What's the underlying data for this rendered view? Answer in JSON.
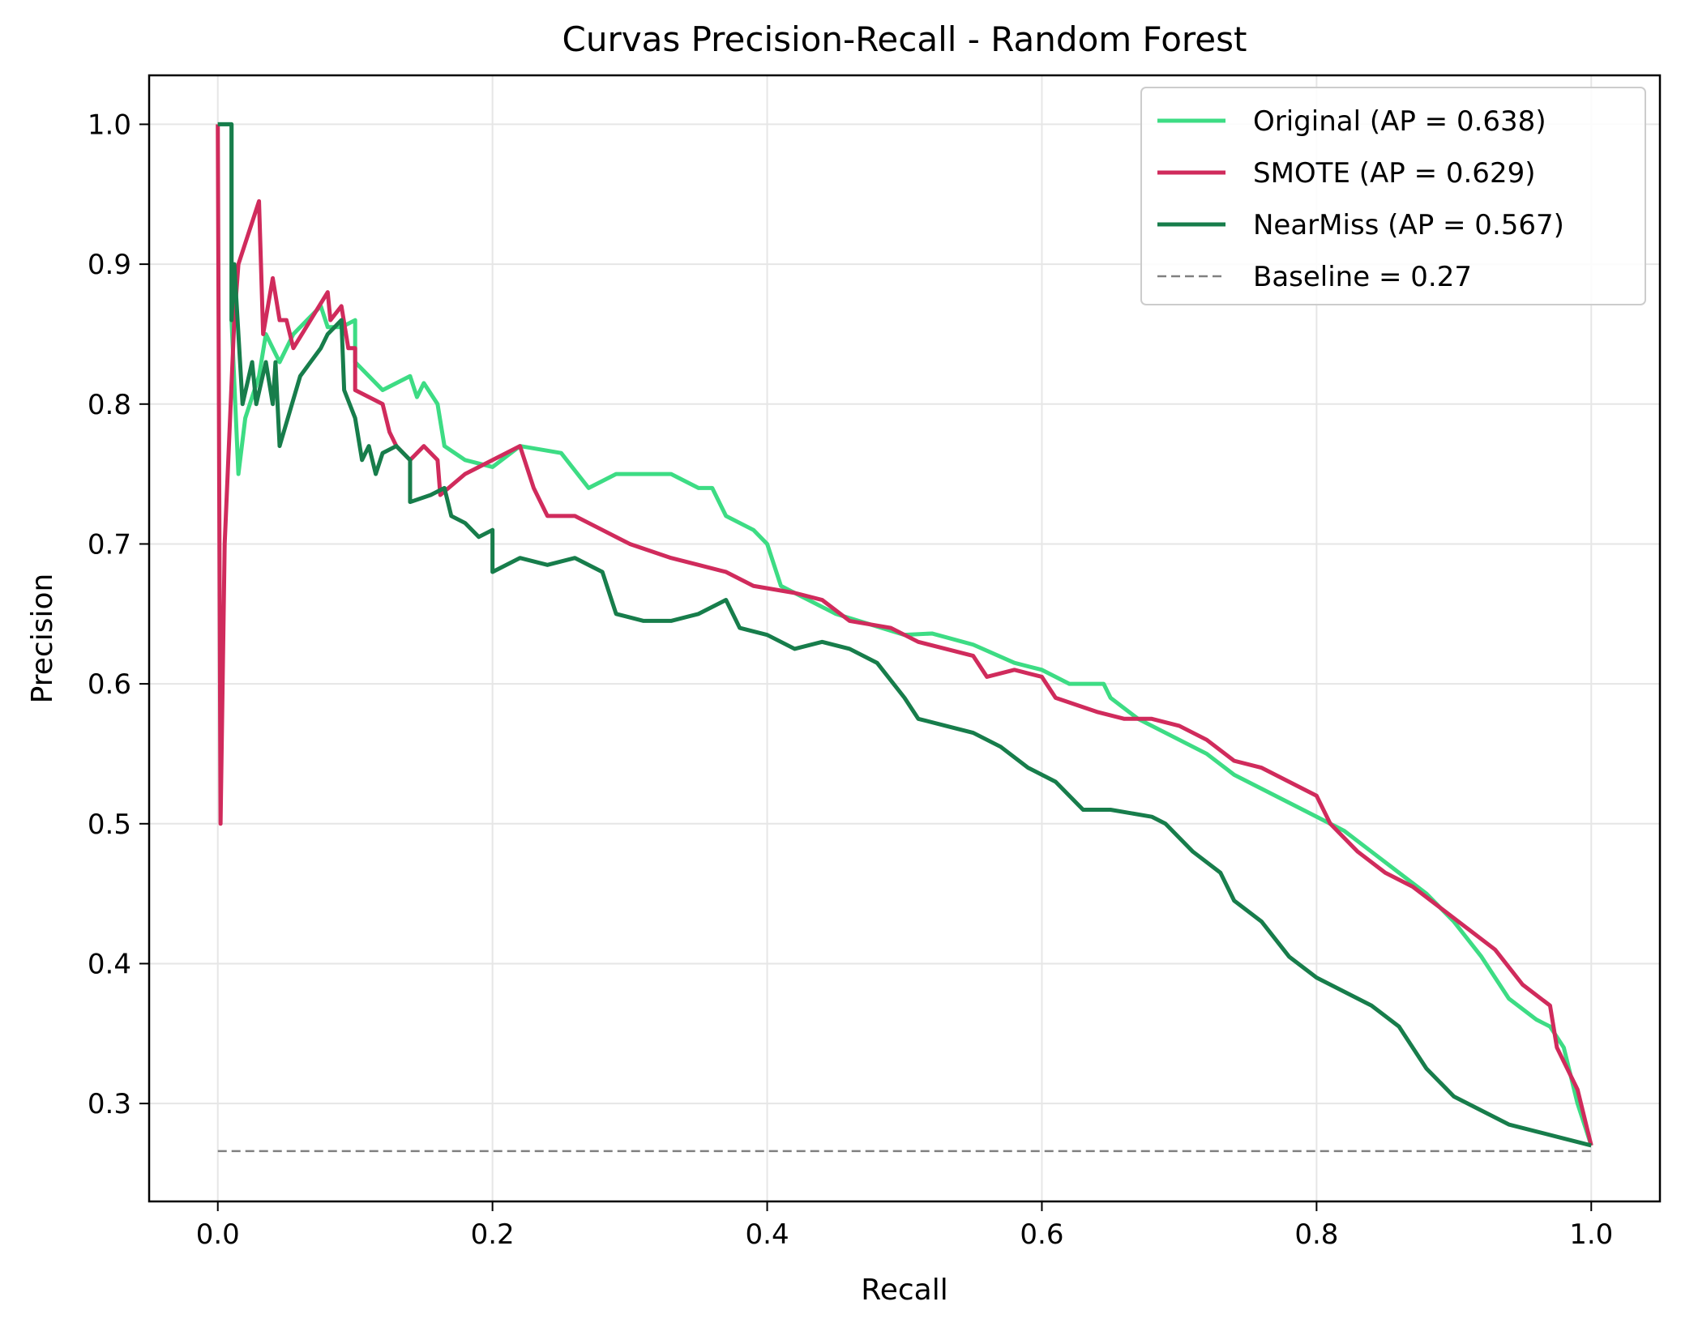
{
  "chart_data": {
    "type": "line",
    "title": "Curvas Precision-Recall - Random Forest",
    "xlabel": "Recall",
    "ylabel": "Precision",
    "xlim": [
      -0.05,
      1.05
    ],
    "ylim": [
      0.23,
      1.035
    ],
    "xticks": [
      0.0,
      0.2,
      0.4,
      0.6,
      0.8,
      1.0
    ],
    "xtick_labels": [
      "0.0",
      "0.2",
      "0.4",
      "0.6",
      "0.8",
      "1.0"
    ],
    "yticks": [
      0.3,
      0.4,
      0.5,
      0.6,
      0.7,
      0.8,
      0.9,
      1.0
    ],
    "ytick_labels": [
      "0.3",
      "0.4",
      "0.5",
      "0.6",
      "0.7",
      "0.8",
      "0.9",
      "1.0"
    ],
    "grid": true,
    "legend_position": "top-right",
    "series": [
      {
        "name": "Original (AP = 0.638)",
        "color": "#3ddc84",
        "style": "solid",
        "points": [
          [
            0.0,
            1.0
          ],
          [
            0.01,
            1.0
          ],
          [
            0.01,
            0.86
          ],
          [
            0.015,
            0.75
          ],
          [
            0.02,
            0.79
          ],
          [
            0.03,
            0.82
          ],
          [
            0.035,
            0.85
          ],
          [
            0.045,
            0.83
          ],
          [
            0.055,
            0.85
          ],
          [
            0.065,
            0.86
          ],
          [
            0.075,
            0.87
          ],
          [
            0.08,
            0.855
          ],
          [
            0.09,
            0.855
          ],
          [
            0.1,
            0.86
          ],
          [
            0.1,
            0.83
          ],
          [
            0.11,
            0.82
          ],
          [
            0.12,
            0.81
          ],
          [
            0.14,
            0.82
          ],
          [
            0.145,
            0.805
          ],
          [
            0.15,
            0.815
          ],
          [
            0.16,
            0.8
          ],
          [
            0.165,
            0.77
          ],
          [
            0.18,
            0.76
          ],
          [
            0.2,
            0.755
          ],
          [
            0.22,
            0.77
          ],
          [
            0.25,
            0.765
          ],
          [
            0.27,
            0.74
          ],
          [
            0.29,
            0.75
          ],
          [
            0.33,
            0.75
          ],
          [
            0.35,
            0.74
          ],
          [
            0.36,
            0.74
          ],
          [
            0.37,
            0.72
          ],
          [
            0.39,
            0.71
          ],
          [
            0.4,
            0.7
          ],
          [
            0.41,
            0.67
          ],
          [
            0.43,
            0.66
          ],
          [
            0.45,
            0.65
          ],
          [
            0.5,
            0.635
          ],
          [
            0.52,
            0.636
          ],
          [
            0.55,
            0.628
          ],
          [
            0.58,
            0.615
          ],
          [
            0.6,
            0.61
          ],
          [
            0.62,
            0.6
          ],
          [
            0.645,
            0.6
          ],
          [
            0.65,
            0.59
          ],
          [
            0.67,
            0.575
          ],
          [
            0.7,
            0.56
          ],
          [
            0.72,
            0.55
          ],
          [
            0.74,
            0.535
          ],
          [
            0.76,
            0.525
          ],
          [
            0.78,
            0.515
          ],
          [
            0.8,
            0.505
          ],
          [
            0.82,
            0.495
          ],
          [
            0.84,
            0.48
          ],
          [
            0.86,
            0.465
          ],
          [
            0.88,
            0.45
          ],
          [
            0.9,
            0.43
          ],
          [
            0.92,
            0.405
          ],
          [
            0.94,
            0.375
          ],
          [
            0.96,
            0.36
          ],
          [
            0.97,
            0.355
          ],
          [
            0.98,
            0.34
          ],
          [
            0.99,
            0.3
          ],
          [
            1.0,
            0.27
          ]
        ]
      },
      {
        "name": "SMOTE (AP = 0.629)",
        "color": "#d02b5c",
        "style": "solid",
        "points": [
          [
            0.0,
            1.0
          ],
          [
            0.002,
            0.5
          ],
          [
            0.005,
            0.7
          ],
          [
            0.012,
            0.86
          ],
          [
            0.015,
            0.9
          ],
          [
            0.03,
            0.945
          ],
          [
            0.033,
            0.85
          ],
          [
            0.04,
            0.89
          ],
          [
            0.045,
            0.86
          ],
          [
            0.05,
            0.86
          ],
          [
            0.055,
            0.84
          ],
          [
            0.08,
            0.88
          ],
          [
            0.082,
            0.86
          ],
          [
            0.09,
            0.87
          ],
          [
            0.095,
            0.84
          ],
          [
            0.1,
            0.84
          ],
          [
            0.1,
            0.81
          ],
          [
            0.12,
            0.8
          ],
          [
            0.125,
            0.78
          ],
          [
            0.13,
            0.77
          ],
          [
            0.14,
            0.76
          ],
          [
            0.15,
            0.77
          ],
          [
            0.16,
            0.76
          ],
          [
            0.162,
            0.735
          ],
          [
            0.18,
            0.75
          ],
          [
            0.2,
            0.76
          ],
          [
            0.22,
            0.77
          ],
          [
            0.23,
            0.74
          ],
          [
            0.24,
            0.72
          ],
          [
            0.26,
            0.72
          ],
          [
            0.28,
            0.71
          ],
          [
            0.3,
            0.7
          ],
          [
            0.33,
            0.69
          ],
          [
            0.35,
            0.685
          ],
          [
            0.37,
            0.68
          ],
          [
            0.39,
            0.67
          ],
          [
            0.42,
            0.665
          ],
          [
            0.44,
            0.66
          ],
          [
            0.46,
            0.645
          ],
          [
            0.49,
            0.64
          ],
          [
            0.51,
            0.63
          ],
          [
            0.53,
            0.625
          ],
          [
            0.55,
            0.62
          ],
          [
            0.56,
            0.605
          ],
          [
            0.58,
            0.61
          ],
          [
            0.6,
            0.605
          ],
          [
            0.61,
            0.59
          ],
          [
            0.64,
            0.58
          ],
          [
            0.66,
            0.575
          ],
          [
            0.68,
            0.575
          ],
          [
            0.7,
            0.57
          ],
          [
            0.72,
            0.56
          ],
          [
            0.74,
            0.545
          ],
          [
            0.76,
            0.54
          ],
          [
            0.78,
            0.53
          ],
          [
            0.8,
            0.52
          ],
          [
            0.81,
            0.5
          ],
          [
            0.83,
            0.48
          ],
          [
            0.85,
            0.465
          ],
          [
            0.87,
            0.455
          ],
          [
            0.89,
            0.44
          ],
          [
            0.91,
            0.425
          ],
          [
            0.93,
            0.41
          ],
          [
            0.95,
            0.385
          ],
          [
            0.97,
            0.37
          ],
          [
            0.975,
            0.34
          ],
          [
            0.99,
            0.31
          ],
          [
            1.0,
            0.27
          ]
        ]
      },
      {
        "name": "NearMiss (AP = 0.567)",
        "color": "#177d4b",
        "style": "solid",
        "points": [
          [
            0.0,
            1.0
          ],
          [
            0.01,
            1.0
          ],
          [
            0.01,
            0.86
          ],
          [
            0.012,
            0.9
          ],
          [
            0.018,
            0.8
          ],
          [
            0.025,
            0.83
          ],
          [
            0.028,
            0.8
          ],
          [
            0.035,
            0.83
          ],
          [
            0.04,
            0.8
          ],
          [
            0.042,
            0.83
          ],
          [
            0.045,
            0.77
          ],
          [
            0.06,
            0.82
          ],
          [
            0.075,
            0.84
          ],
          [
            0.08,
            0.85
          ],
          [
            0.09,
            0.86
          ],
          [
            0.092,
            0.81
          ],
          [
            0.1,
            0.79
          ],
          [
            0.105,
            0.76
          ],
          [
            0.11,
            0.77
          ],
          [
            0.115,
            0.75
          ],
          [
            0.12,
            0.765
          ],
          [
            0.13,
            0.77
          ],
          [
            0.14,
            0.76
          ],
          [
            0.14,
            0.73
          ],
          [
            0.155,
            0.735
          ],
          [
            0.165,
            0.74
          ],
          [
            0.17,
            0.72
          ],
          [
            0.18,
            0.715
          ],
          [
            0.19,
            0.705
          ],
          [
            0.2,
            0.71
          ],
          [
            0.2,
            0.68
          ],
          [
            0.22,
            0.69
          ],
          [
            0.24,
            0.685
          ],
          [
            0.26,
            0.69
          ],
          [
            0.28,
            0.68
          ],
          [
            0.29,
            0.65
          ],
          [
            0.31,
            0.645
          ],
          [
            0.33,
            0.645
          ],
          [
            0.35,
            0.65
          ],
          [
            0.37,
            0.66
          ],
          [
            0.38,
            0.64
          ],
          [
            0.4,
            0.635
          ],
          [
            0.42,
            0.625
          ],
          [
            0.44,
            0.63
          ],
          [
            0.46,
            0.625
          ],
          [
            0.48,
            0.615
          ],
          [
            0.5,
            0.59
          ],
          [
            0.51,
            0.575
          ],
          [
            0.53,
            0.57
          ],
          [
            0.55,
            0.565
          ],
          [
            0.57,
            0.555
          ],
          [
            0.59,
            0.54
          ],
          [
            0.61,
            0.53
          ],
          [
            0.63,
            0.51
          ],
          [
            0.65,
            0.51
          ],
          [
            0.68,
            0.505
          ],
          [
            0.69,
            0.5
          ],
          [
            0.71,
            0.48
          ],
          [
            0.73,
            0.465
          ],
          [
            0.74,
            0.445
          ],
          [
            0.76,
            0.43
          ],
          [
            0.78,
            0.405
          ],
          [
            0.8,
            0.39
          ],
          [
            0.82,
            0.38
          ],
          [
            0.84,
            0.37
          ],
          [
            0.86,
            0.355
          ],
          [
            0.88,
            0.325
          ],
          [
            0.9,
            0.305
          ],
          [
            0.92,
            0.295
          ],
          [
            0.94,
            0.285
          ],
          [
            0.96,
            0.28
          ],
          [
            0.98,
            0.275
          ],
          [
            1.0,
            0.27
          ]
        ]
      },
      {
        "name": "Baseline = 0.27",
        "color": "#808080",
        "style": "dashed",
        "points": [
          [
            0.0,
            0.266
          ],
          [
            1.0,
            0.266
          ]
        ]
      }
    ]
  }
}
